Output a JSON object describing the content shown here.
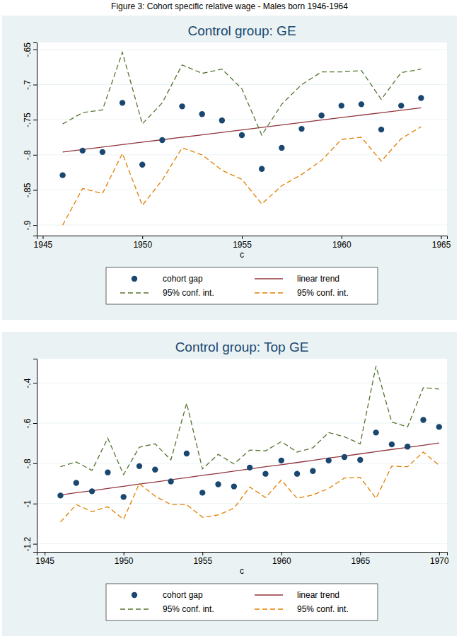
{
  "header": {
    "title": "Figure 3: Cohort specific relative wage - Males born 1946-1964"
  },
  "chart_data": [
    {
      "type": "line",
      "title": "Control group: GE",
      "x_label": "c",
      "legend": "bottom",
      "grid": true,
      "x": [
        1946,
        1947,
        1948,
        1949,
        1950,
        1951,
        1952,
        1953,
        1954,
        1955,
        1956,
        1957,
        1958,
        1959,
        1960,
        1961,
        1962,
        1963,
        1964
      ],
      "xlim": [
        1944.7,
        1965.3
      ],
      "xticks": [
        1945,
        1950,
        1955,
        1960,
        1965
      ],
      "ylim": [
        -0.915,
        -0.64
      ],
      "yticks": [
        {
          "value": -0.9,
          "label": "-.9"
        },
        {
          "value": -0.85,
          "label": "-.85"
        },
        {
          "value": -0.8,
          "label": "-.8"
        },
        {
          "value": -0.75,
          "label": "-.75"
        },
        {
          "value": -0.7,
          "label": "-.7"
        },
        {
          "value": -0.65,
          "label": "-.65"
        }
      ],
      "series": [
        {
          "name": "cohort gap",
          "type": "scatter",
          "marker": "circle",
          "color": "#1a476f",
          "values": [
            -0.829,
            -0.794,
            -0.796,
            -0.726,
            -0.814,
            -0.779,
            -0.731,
            -0.742,
            -0.751,
            -0.772,
            -0.82,
            -0.79,
            -0.763,
            -0.744,
            -0.73,
            -0.728,
            -0.764,
            -0.73,
            -0.719
          ]
        },
        {
          "name": "linear trend",
          "type": "line",
          "line_style": "solid",
          "color": "#90353b",
          "values": [
            -0.796,
            -0.7925,
            -0.789,
            -0.7855,
            -0.782,
            -0.7785,
            -0.775,
            -0.7715,
            -0.768,
            -0.7645,
            -0.761,
            -0.7575,
            -0.754,
            -0.7505,
            -0.747,
            -0.7435,
            -0.74,
            -0.7365,
            -0.733
          ]
        },
        {
          "name": "95% conf. int.",
          "type": "line",
          "line_style": "dashed",
          "color": "#55752f",
          "values": [
            -0.756,
            -0.74,
            -0.736,
            -0.654,
            -0.756,
            -0.726,
            -0.672,
            -0.684,
            -0.678,
            -0.706,
            -0.772,
            -0.728,
            -0.7,
            -0.682,
            -0.682,
            -0.68,
            -0.721,
            -0.683,
            -0.678
          ]
        },
        {
          "name": "95% conf. int.",
          "type": "line",
          "line_style": "dashed",
          "color": "#e37e00",
          "values": [
            -0.9,
            -0.848,
            -0.855,
            -0.798,
            -0.872,
            -0.836,
            -0.79,
            -0.8,
            -0.822,
            -0.835,
            -0.87,
            -0.844,
            -0.828,
            -0.808,
            -0.778,
            -0.775,
            -0.809,
            -0.777,
            -0.76
          ]
        }
      ]
    },
    {
      "type": "line",
      "title": "Control group: Top GE",
      "x_label": "c",
      "legend": "bottom",
      "grid": true,
      "x": [
        1946,
        1947,
        1948,
        1949,
        1950,
        1951,
        1952,
        1953,
        1954,
        1955,
        1956,
        1957,
        1958,
        1959,
        1960,
        1961,
        1962,
        1963,
        1964,
        1965,
        1966,
        1967,
        1968,
        1969,
        1970
      ],
      "xlim": [
        1944.5,
        1970.5
      ],
      "xticks": [
        1945,
        1950,
        1955,
        1960,
        1965,
        1970
      ],
      "ylim": [
        -1.24,
        -0.28
      ],
      "yticks": [
        {
          "value": -1.2,
          "label": "-1.2"
        },
        {
          "value": -1,
          "label": "-1"
        },
        {
          "value": -0.8,
          "label": "-.8"
        },
        {
          "value": -0.6,
          "label": "-.6"
        },
        {
          "value": -0.4,
          "label": "-.4"
        }
      ],
      "series": [
        {
          "name": "cohort gap",
          "type": "scatter",
          "marker": "circle",
          "color": "#1a476f",
          "values": [
            -0.96,
            -0.897,
            -0.939,
            -0.845,
            -0.967,
            -0.814,
            -0.831,
            -0.89,
            -0.751,
            -0.946,
            -0.904,
            -0.915,
            -0.821,
            -0.852,
            -0.786,
            -0.852,
            -0.838,
            -0.786,
            -0.769,
            -0.783,
            -0.647,
            -0.706,
            -0.717,
            -0.584,
            -0.619
          ]
        },
        {
          "name": "linear trend",
          "type": "line",
          "line_style": "solid",
          "color": "#90353b",
          "values": [
            -0.957,
            -0.946,
            -0.936,
            -0.925,
            -0.914,
            -0.903,
            -0.893,
            -0.882,
            -0.871,
            -0.86,
            -0.85,
            -0.839,
            -0.828,
            -0.817,
            -0.807,
            -0.796,
            -0.785,
            -0.774,
            -0.764,
            -0.753,
            -0.742,
            -0.731,
            -0.721,
            -0.71,
            -0.699
          ]
        },
        {
          "name": "95% conf. int.",
          "type": "line",
          "line_style": "dashed",
          "color": "#55752f",
          "values": [
            -0.817,
            -0.793,
            -0.835,
            -0.675,
            -0.856,
            -0.72,
            -0.703,
            -0.783,
            -0.501,
            -0.828,
            -0.755,
            -0.803,
            -0.734,
            -0.738,
            -0.692,
            -0.744,
            -0.723,
            -0.647,
            -0.668,
            -0.703,
            -0.317,
            -0.595,
            -0.619,
            -0.424,
            -0.431
          ]
        },
        {
          "name": "95% conf. int.",
          "type": "line",
          "line_style": "dashed",
          "color": "#e37e00",
          "values": [
            -1.092,
            -1.005,
            -1.04,
            -1.016,
            -1.078,
            -0.901,
            -0.963,
            -1.005,
            -1.005,
            -1.068,
            -1.057,
            -1.023,
            -0.918,
            -0.97,
            -0.883,
            -0.974,
            -0.957,
            -0.925,
            -0.873,
            -0.87,
            -0.974,
            -0.814,
            -0.817,
            -0.744,
            -0.81
          ]
        }
      ]
    }
  ]
}
